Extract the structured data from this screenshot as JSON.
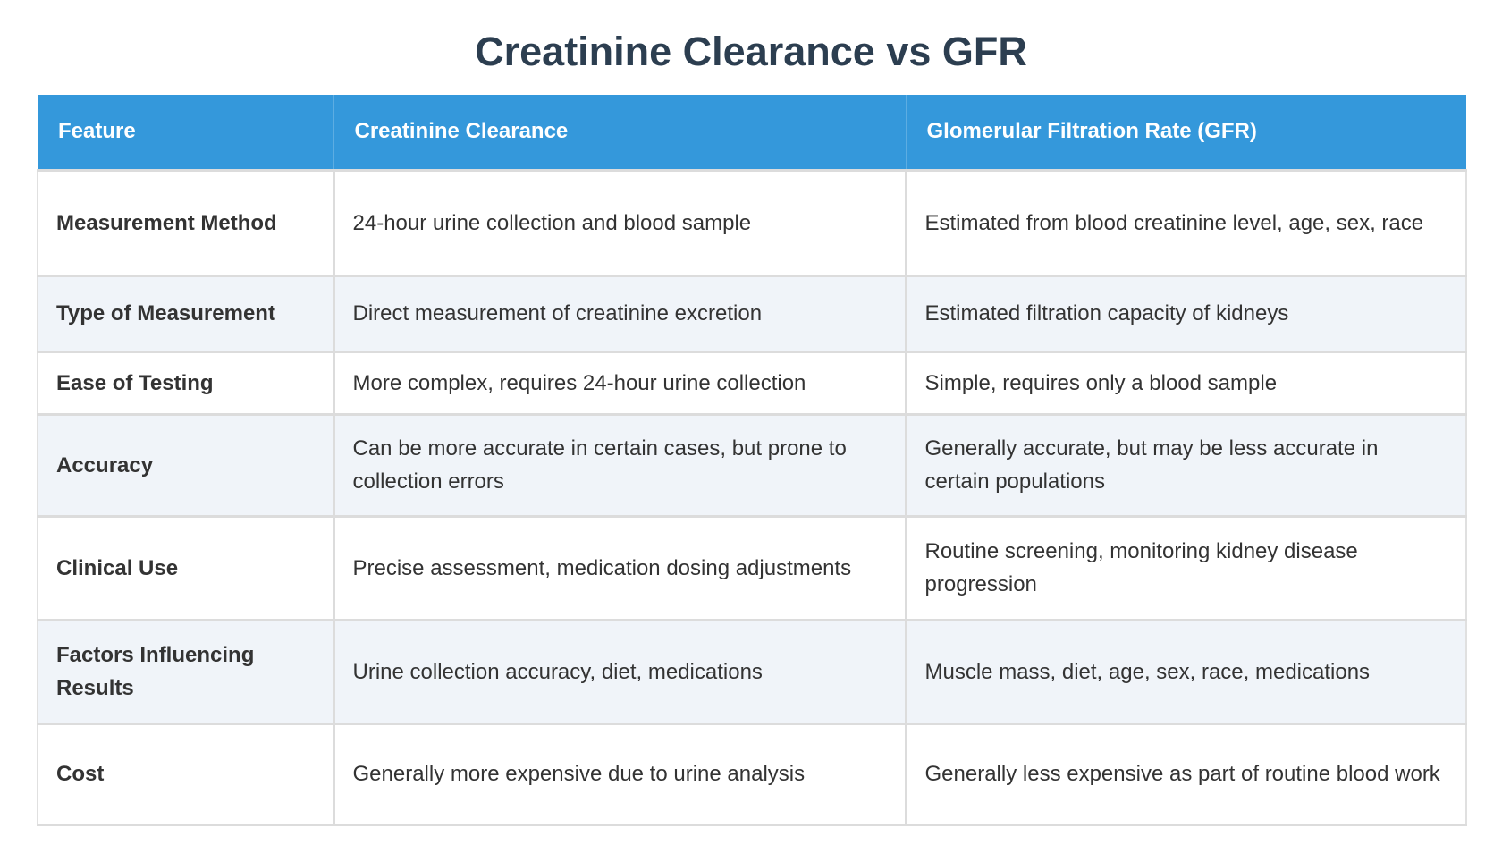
{
  "page": {
    "title": "Creatinine Clearance vs GFR"
  },
  "colors": {
    "title": "#2c3e50",
    "header_bg": "#3498db",
    "header_text": "#ffffff",
    "row_alt_bg": "#f0f4f9",
    "border": "#dcdcdc",
    "body_text": "#333333"
  },
  "table": {
    "headers": [
      "Feature",
      "Creatinine Clearance",
      "Glomerular Filtration Rate (GFR)"
    ],
    "rows": [
      {
        "feature": "Measurement Method",
        "creatinine_clearance": "24-hour urine collection and blood sample",
        "gfr": "Estimated from blood creatinine level, age, sex, race"
      },
      {
        "feature": "Type of Measurement",
        "creatinine_clearance": "Direct measurement of creatinine excretion",
        "gfr": "Estimated filtration capacity of kidneys"
      },
      {
        "feature": "Ease of Testing",
        "creatinine_clearance": "More complex, requires 24-hour urine collection",
        "gfr": "Simple, requires only a blood sample"
      },
      {
        "feature": "Accuracy",
        "creatinine_clearance": "Can be more accurate in certain cases, but prone to collection errors",
        "gfr": "Generally accurate, but may be less accurate in certain populations"
      },
      {
        "feature": "Clinical Use",
        "creatinine_clearance": "Precise assessment, medication dosing adjustments",
        "gfr": "Routine screening, monitoring kidney disease progression"
      },
      {
        "feature": "Factors Influencing Results",
        "creatinine_clearance": "Urine collection accuracy, diet, medications",
        "gfr": "Muscle mass, diet, age, sex, race, medications"
      },
      {
        "feature": "Cost",
        "creatinine_clearance": "Generally more expensive due to urine analysis",
        "gfr": "Generally less expensive as part of routine blood work"
      }
    ]
  }
}
